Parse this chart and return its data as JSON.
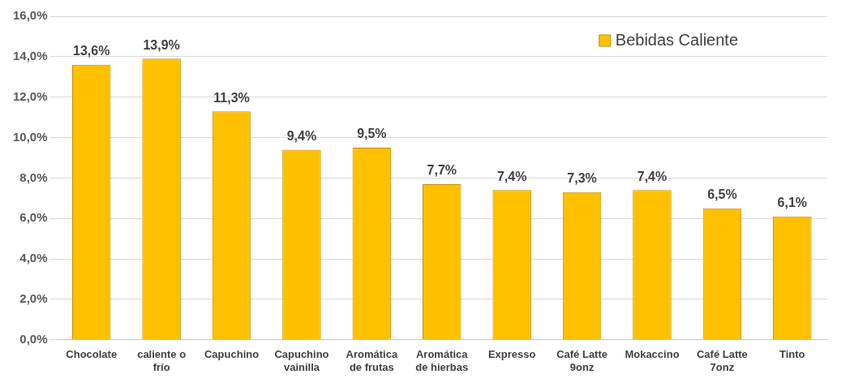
{
  "chart_data": {
    "type": "bar",
    "categories": [
      "Chocolate",
      "caliente o frío",
      "Capuchino",
      "Capuchino vainilla",
      "Aromática de frutas",
      "Aromática de hierbas",
      "Expresso",
      "Café Latte 9onz",
      "Mokaccino",
      "Café Latte 7onz",
      "Tinto"
    ],
    "series": [
      {
        "name": "Bebidas Caliente",
        "color": "#ffc000",
        "values": [
          13.6,
          13.9,
          11.3,
          9.4,
          9.5,
          7.7,
          7.4,
          7.3,
          7.4,
          6.5,
          6.1
        ],
        "value_labels": [
          "13,6%",
          "13,9%",
          "11,3%",
          "9,4%",
          "9,5%",
          "7,7%",
          "7,4%",
          "7,3%",
          "7,4%",
          "6,5%",
          "6,1%"
        ]
      }
    ],
    "ylim": [
      0,
      16
    ],
    "yticks": [
      {
        "value": 0,
        "label": "0,0%"
      },
      {
        "value": 2,
        "label": "2,0%"
      },
      {
        "value": 4,
        "label": "4,0%"
      },
      {
        "value": 6,
        "label": "6,0%"
      },
      {
        "value": 8,
        "label": "8,0%"
      },
      {
        "value": 10,
        "label": "10,0%"
      },
      {
        "value": 12,
        "label": "12,0%"
      },
      {
        "value": 14,
        "label": "14,0%"
      },
      {
        "value": 16,
        "label": "16,0%"
      }
    ],
    "grid": "y",
    "legend": "top right"
  }
}
